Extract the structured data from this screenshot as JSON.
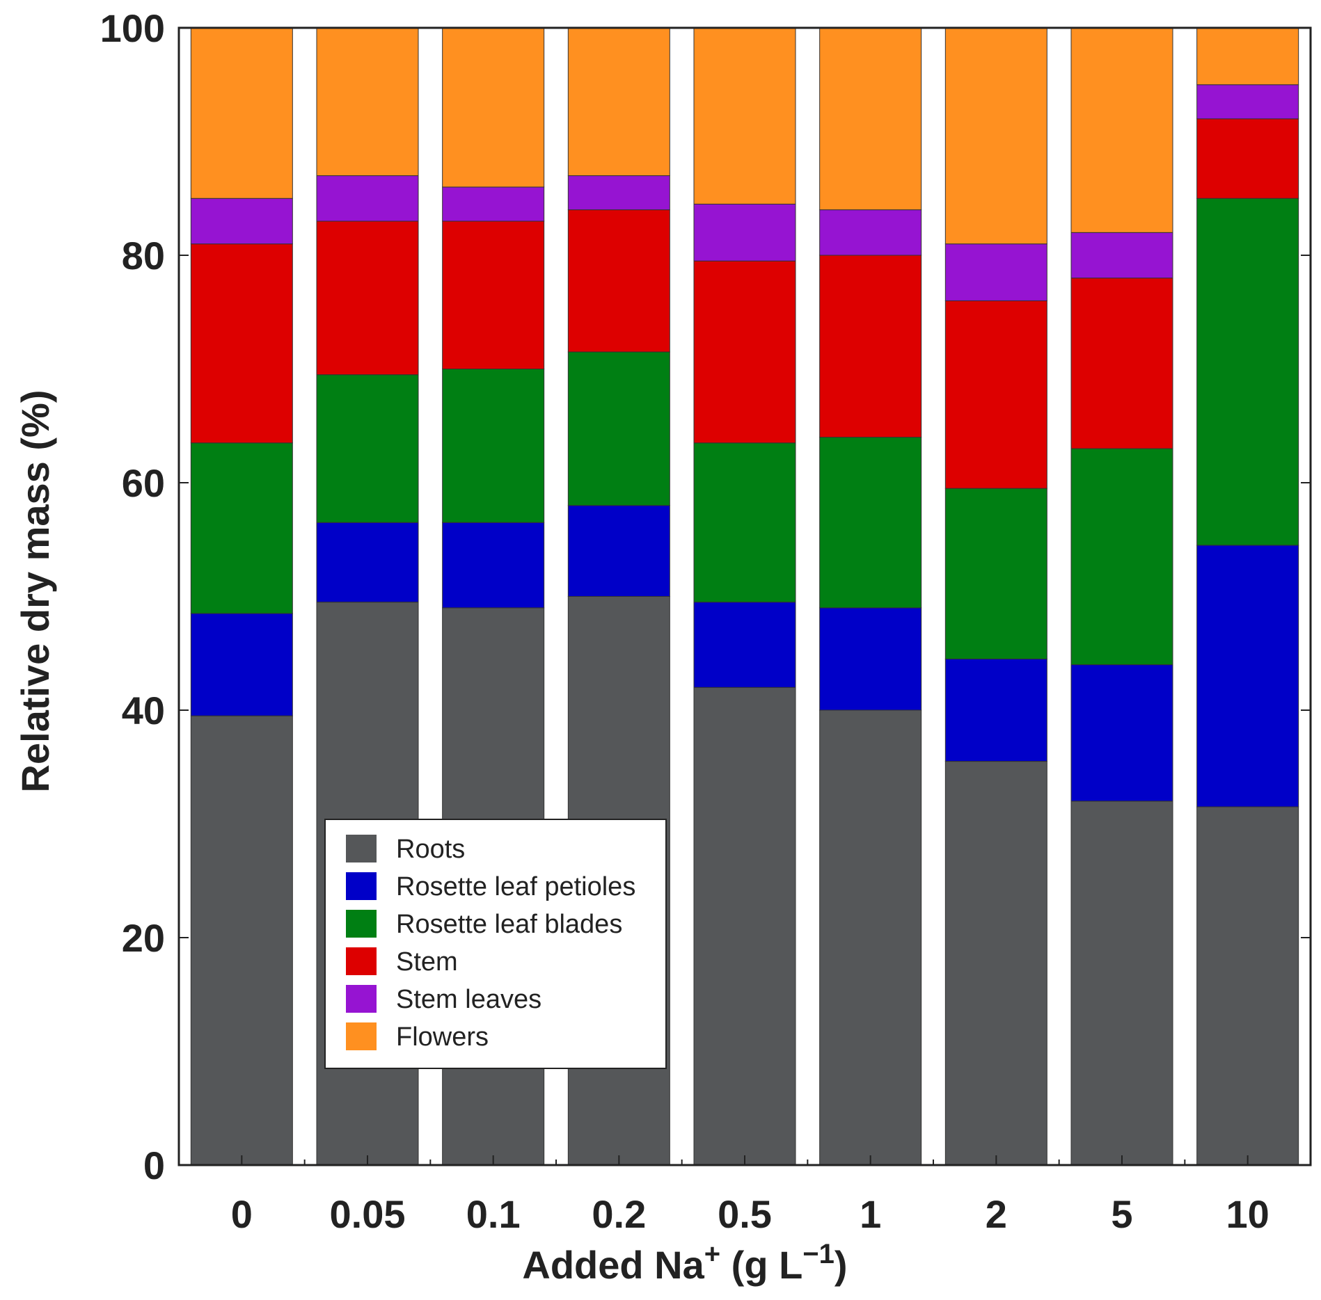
{
  "chart_data": {
    "type": "bar",
    "stacked": true,
    "title": "",
    "xlabel": {
      "main": "Added Na",
      "superscript": "+",
      "unit_open": " (g L",
      "unit_superscript": "−1",
      "unit_close": ")"
    },
    "ylabel": "Relative dry mass (%)",
    "ylim": [
      0,
      100
    ],
    "yticks": [
      "0",
      "20",
      "40",
      "60",
      "80",
      "100"
    ],
    "grid": false,
    "legend_position": "lower-left",
    "categories": [
      "0",
      "0.05",
      "0.1",
      "0.2",
      "0.5",
      "1",
      "2",
      "5",
      "10"
    ],
    "series": [
      {
        "name": "Roots",
        "color": "#555759",
        "values": [
          39.5,
          49.5,
          49,
          50,
          42,
          40,
          35.5,
          32,
          31.5
        ]
      },
      {
        "name": "Rosette leaf petioles",
        "color": "#0000c8",
        "values": [
          9,
          7,
          7.5,
          8,
          7.5,
          9,
          9,
          12,
          23
        ]
      },
      {
        "name": "Rosette leaf blades",
        "color": "#007f13",
        "values": [
          15,
          13,
          13.5,
          13.5,
          14,
          15,
          15,
          19,
          30.5
        ]
      },
      {
        "name": "Stem",
        "color": "#dd0000",
        "values": [
          17.5,
          13.5,
          13,
          12.5,
          16,
          16,
          16.5,
          15,
          7
        ]
      },
      {
        "name": "Stem leaves",
        "color": "#9614d2",
        "values": [
          4,
          4,
          3,
          3,
          5,
          4,
          5,
          4,
          3
        ]
      },
      {
        "name": "Flowers",
        "color": "#ff9020",
        "values": [
          15,
          13,
          14,
          13,
          15.5,
          16,
          19,
          18,
          5
        ]
      }
    ]
  }
}
